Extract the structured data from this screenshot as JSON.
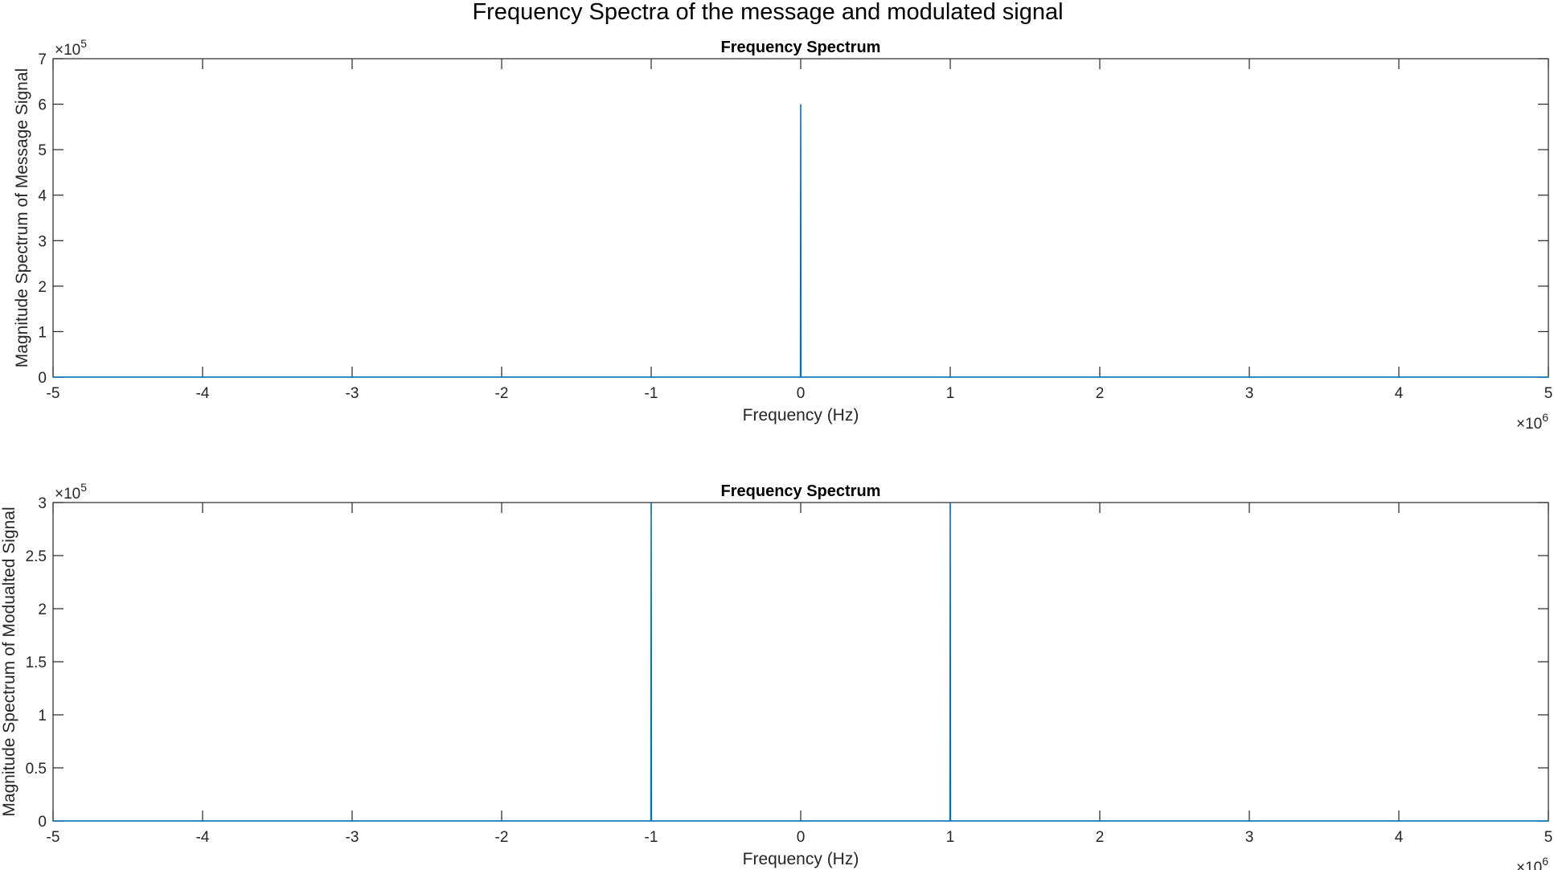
{
  "figure_title": "Frequency Spectra of the message and modulated signal",
  "chart_data": [
    {
      "type": "line",
      "title": "Frequency Spectrum",
      "xlabel": "Frequency (Hz)",
      "ylabel": "Magnitude Spectrum of Message Signal",
      "x_exponent_label": "10",
      "x_exponent_power": "6",
      "y_exponent_label": "10",
      "y_exponent_power": "5",
      "xlim": [
        -5,
        5
      ],
      "ylim": [
        0,
        7
      ],
      "x_unit_multiplier": 1000000,
      "y_unit_multiplier": 100000,
      "xticks": [
        -5,
        -4,
        -3,
        -2,
        -1,
        0,
        1,
        2,
        3,
        4,
        5
      ],
      "yticks": [
        0,
        1,
        2,
        3,
        4,
        5,
        6,
        7
      ],
      "xtick_labels": [
        "-5",
        "-4",
        "-3",
        "-2",
        "-1",
        "0",
        "1",
        "2",
        "3",
        "4",
        "5"
      ],
      "ytick_labels": [
        "0",
        "1",
        "2",
        "3",
        "4",
        "5",
        "6",
        "7"
      ],
      "grid": false,
      "color": "#0072BD",
      "series": [
        {
          "x": [
            -5,
            -0.002,
            0,
            0.002,
            5
          ],
          "y": [
            0,
            0,
            6,
            0,
            0
          ]
        }
      ]
    },
    {
      "type": "line",
      "title": "Frequency Spectrum",
      "xlabel": "Frequency (Hz)",
      "ylabel": "Magnitude Spectrum of Modualted Signal",
      "x_exponent_label": "10",
      "x_exponent_power": "6",
      "y_exponent_label": "10",
      "y_exponent_power": "5",
      "xlim": [
        -5,
        5
      ],
      "ylim": [
        0,
        3
      ],
      "x_unit_multiplier": 1000000,
      "y_unit_multiplier": 100000,
      "xticks": [
        -5,
        -4,
        -3,
        -2,
        -1,
        0,
        1,
        2,
        3,
        4,
        5
      ],
      "yticks": [
        0,
        0.5,
        1,
        1.5,
        2,
        2.5,
        3
      ],
      "xtick_labels": [
        "-5",
        "-4",
        "-3",
        "-2",
        "-1",
        "0",
        "1",
        "2",
        "3",
        "4",
        "5"
      ],
      "ytick_labels": [
        "0",
        "0.5",
        "1",
        "1.5",
        "2",
        "2.5",
        "3"
      ],
      "grid": false,
      "color": "#0072BD",
      "series": [
        {
          "x": [
            -5,
            -1.002,
            -1,
            -0.998,
            0.998,
            1,
            1.002,
            5
          ],
          "y": [
            0,
            0,
            3,
            0,
            0,
            3,
            0,
            0
          ]
        }
      ]
    }
  ]
}
